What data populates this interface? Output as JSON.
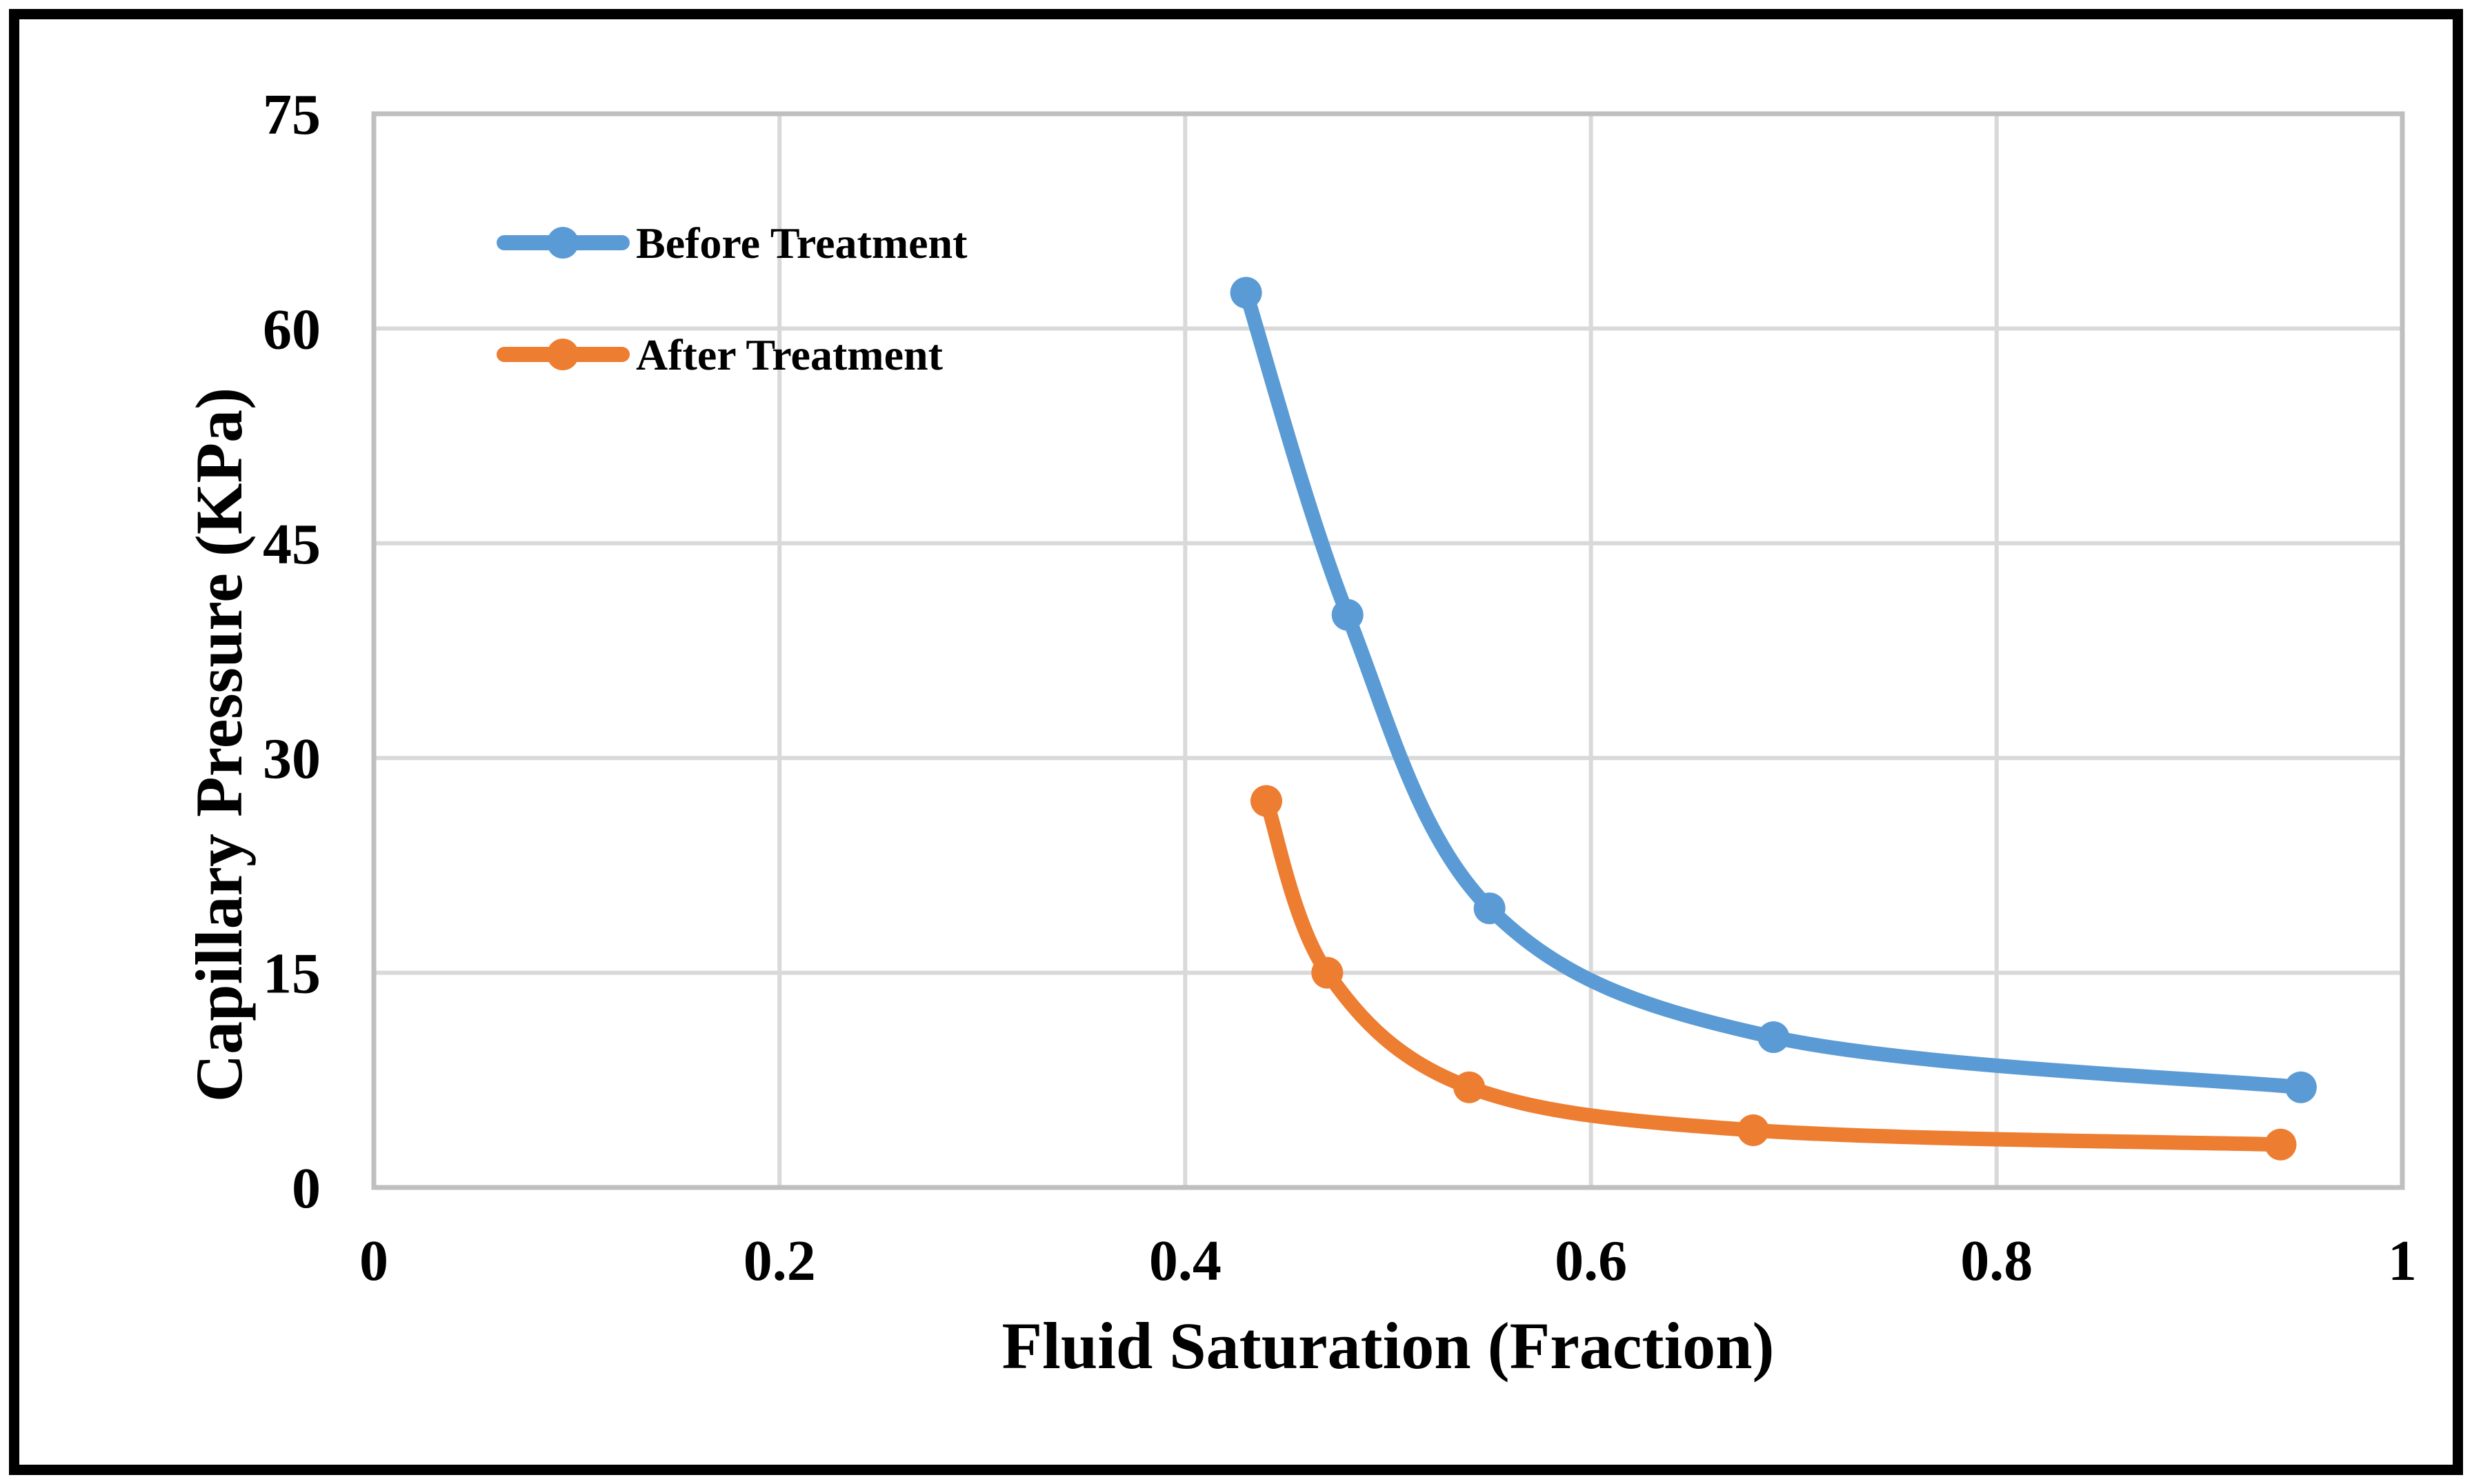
{
  "chart_data": {
    "type": "line",
    "title": "",
    "xlabel": "Fluid Saturation (Fraction)",
    "ylabel": "Capillary Pressure (KPa)",
    "xlim": [
      0,
      1
    ],
    "ylim": [
      0,
      75
    ],
    "x_tick_values": [
      0,
      0.2,
      0.4,
      0.6,
      0.8,
      1
    ],
    "x_tick_labels": [
      "0",
      "0.2",
      "0.4",
      "0.6",
      "0.8",
      "1"
    ],
    "y_tick_values": [
      0,
      15,
      30,
      45,
      60,
      75
    ],
    "y_tick_labels": [
      "0",
      "15",
      "30",
      "45",
      "60",
      "75"
    ],
    "grid": true,
    "legend_position": "top-left-inside",
    "series": [
      {
        "name": "Before Treatment",
        "color": "#5B9BD5",
        "marker": "circle",
        "smooth": true,
        "points": [
          [
            0.43,
            62.5
          ],
          [
            0.48,
            40
          ],
          [
            0.55,
            19.5
          ],
          [
            0.69,
            10.5
          ],
          [
            0.95,
            7
          ]
        ]
      },
      {
        "name": "After Treatment",
        "color": "#ED7D31",
        "marker": "circle",
        "smooth": true,
        "points": [
          [
            0.44,
            27
          ],
          [
            0.47,
            15
          ],
          [
            0.54,
            7
          ],
          [
            0.68,
            4
          ],
          [
            0.94,
            3
          ]
        ]
      }
    ],
    "colors": {
      "gridline": "#D9D9D9",
      "plot_border": "#BFBFBF",
      "text": "#000000",
      "background": "#FFFFFF",
      "frame": "#000000"
    }
  }
}
